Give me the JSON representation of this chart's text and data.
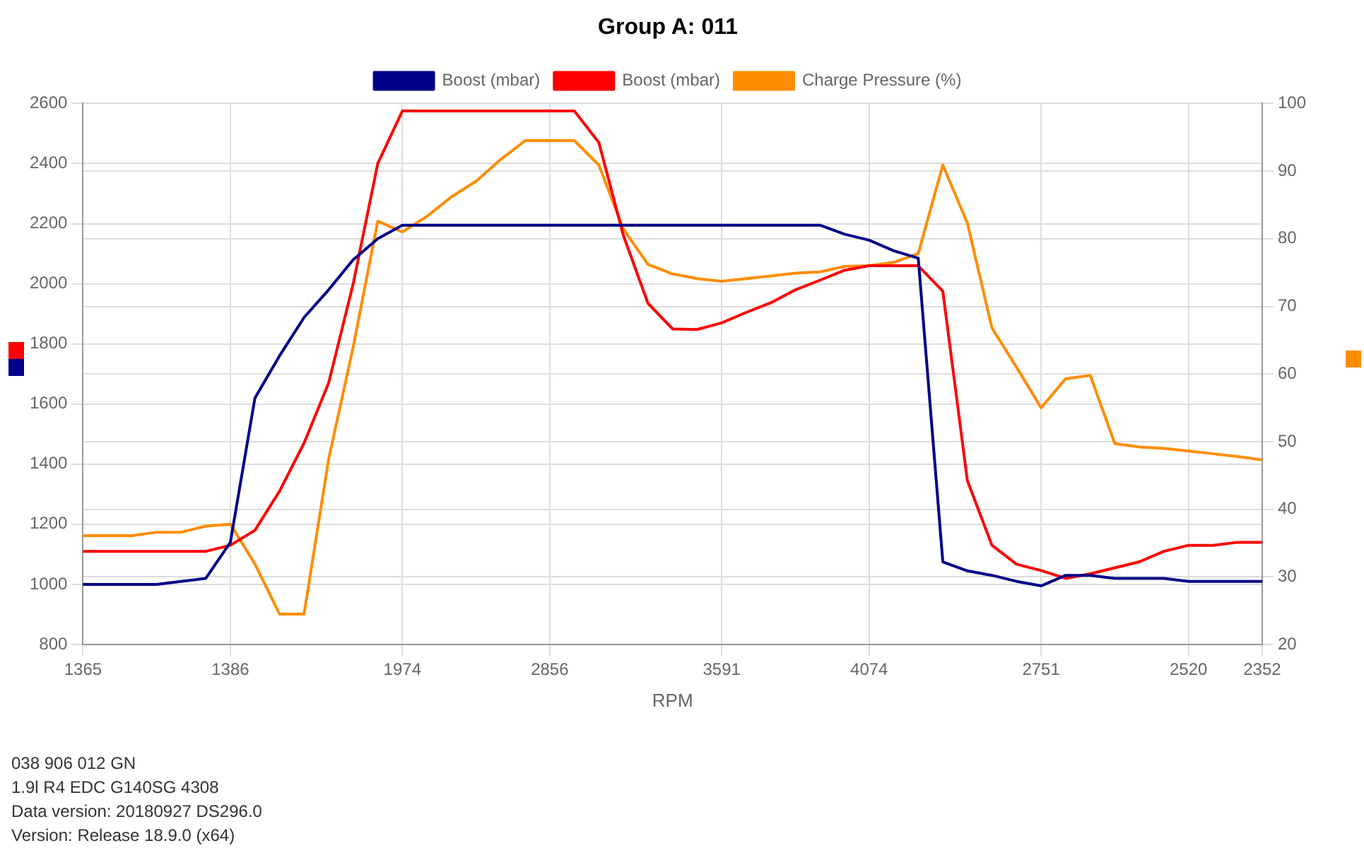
{
  "chart_data": {
    "type": "line",
    "title": "Group A: 011",
    "xlabel": "RPM",
    "categories": [
      "1365",
      null,
      null,
      null,
      null,
      null,
      "1386",
      null,
      null,
      null,
      null,
      null,
      null,
      "1974",
      null,
      null,
      null,
      null,
      null,
      "2856",
      null,
      null,
      null,
      null,
      null,
      null,
      "3591",
      null,
      null,
      null,
      null,
      null,
      "4074",
      null,
      null,
      null,
      null,
      null,
      null,
      "2751",
      null,
      null,
      null,
      null,
      null,
      "2520",
      null,
      null,
      "2352"
    ],
    "series": [
      {
        "name": "Boost (mbar)",
        "color": "#000088",
        "values": [
          1000,
          1000,
          1000,
          1000,
          1010,
          1020,
          1140,
          1620,
          1760,
          1888,
          1980,
          2080,
          2150,
          2195,
          2195,
          2195,
          2195,
          2195,
          2195,
          2195,
          2195,
          2195,
          2195,
          2195,
          2195,
          2195,
          2195,
          2195,
          2195,
          2195,
          2195,
          2165,
          2145,
          2110,
          2085,
          1075,
          1045,
          1030,
          1010,
          995,
          1030,
          1030,
          1020,
          1020,
          1020,
          1010,
          1010,
          1010,
          1010
        ]
      },
      {
        "name": "Boost (mbar)",
        "color": "#ff0000",
        "values": [
          1110,
          1110,
          1110,
          1110,
          1110,
          1110,
          1130,
          1180,
          1310,
          1470,
          1670,
          2000,
          2400,
          2575,
          2575,
          2575,
          2575,
          2575,
          2575,
          2575,
          2575,
          2470,
          2160,
          1935,
          1850,
          1848,
          1870,
          1905,
          1937,
          1980,
          2012,
          2045,
          2060,
          2060,
          2060,
          1975,
          1345,
          1130,
          1067,
          1046,
          1020,
          1035,
          1055,
          1075,
          1110,
          1130,
          1130,
          1140,
          1140
        ]
      },
      {
        "name": "Charge Pressure (%)",
        "color": "#ff8c00",
        "axis": "y2",
        "values": [
          36.1,
          36.1,
          36.1,
          36.6,
          36.6,
          37.5,
          37.8,
          31.9,
          24.5,
          24.5,
          47.4,
          64,
          82.6,
          81,
          83.3,
          86.2,
          88.5,
          91.7,
          94.5,
          94.5,
          94.5,
          90.9,
          81.4,
          76.2,
          74.8,
          74.1,
          73.7,
          74.1,
          74.5,
          74.9,
          75.1,
          75.9,
          76,
          76.5,
          77.8,
          90.9,
          82.3,
          66.8,
          61,
          55,
          59.3,
          59.8,
          49.7,
          49.2,
          49,
          48.6,
          48.2,
          47.8,
          47.3
        ]
      }
    ],
    "ylim": [
      800,
      2600
    ],
    "yticks": [
      800,
      1000,
      1200,
      1400,
      1600,
      1800,
      2000,
      2200,
      2400,
      2600
    ],
    "y2lim": [
      20,
      100
    ],
    "y2ticks": [
      20,
      30,
      40,
      50,
      60,
      70,
      80,
      90,
      100
    ],
    "grid": true,
    "legend": "top",
    "marker": "none",
    "line_style": "solid",
    "annotations": [
      "038 906 012 GN",
      "1.9l R4 EDC G140SG  4308",
      "Data version: 20180927 DS296.0",
      "Version: Release 18.9.0 (x64)"
    ]
  }
}
